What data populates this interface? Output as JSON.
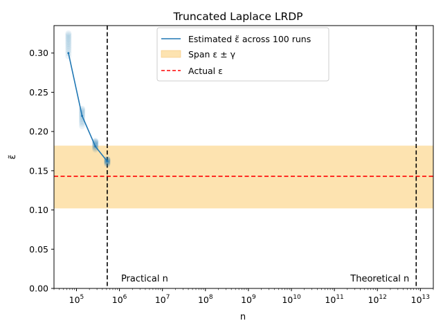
{
  "chart_data": {
    "type": "line",
    "title": "Truncated Laplace LRDP",
    "xlabel": "n",
    "ylabel": "ε̃",
    "xscale": "log",
    "xlim": [
      30000,
      20000000000000
    ],
    "ylim": [
      0.0,
      0.335
    ],
    "grid": false,
    "legend_position": "top-center",
    "x_ticks": [
      {
        "exp": 5,
        "base": "10",
        "sup": "5"
      },
      {
        "exp": 6,
        "base": "10",
        "sup": "6"
      },
      {
        "exp": 7,
        "base": "10",
        "sup": "7"
      },
      {
        "exp": 8,
        "base": "10",
        "sup": "8"
      },
      {
        "exp": 9,
        "base": "10",
        "sup": "9"
      },
      {
        "exp": 10,
        "base": "10",
        "sup": "10"
      },
      {
        "exp": 11,
        "base": "10",
        "sup": "11"
      },
      {
        "exp": 12,
        "base": "10",
        "sup": "12"
      },
      {
        "exp": 13,
        "base": "10",
        "sup": "13"
      }
    ],
    "y_ticks": [
      0.0,
      0.05,
      0.1,
      0.15,
      0.2,
      0.25,
      0.3
    ],
    "y_tick_labels": [
      "0.00",
      "0.05",
      "0.10",
      "0.15",
      "0.20",
      "0.25",
      "0.30"
    ],
    "series": [
      {
        "name": "Estimated ε̃ across 100 runs",
        "color": "#1f77b4",
        "x": [
          65000,
          135000,
          275000,
          520000
        ],
        "y": [
          0.3,
          0.22,
          0.181,
          0.162
        ],
        "run_scatter": [
          {
            "x": 65000,
            "min": 0.296,
            "max": 0.325
          },
          {
            "x": 135000,
            "min": 0.207,
            "max": 0.229
          },
          {
            "x": 275000,
            "min": 0.177,
            "max": 0.188
          },
          {
            "x": 520000,
            "min": 0.158,
            "max": 0.165
          }
        ]
      }
    ],
    "span": {
      "name": "Span ε ± γ",
      "lower": 0.102,
      "upper": 0.182,
      "color": "#fde3b0"
    },
    "actual": {
      "name": "Actual ε",
      "value": 0.143,
      "color": "#ff0000"
    },
    "vlines": [
      {
        "x": 520000,
        "label": "Practical n"
      },
      {
        "x": 8000000000000,
        "label": "Theoretical n"
      }
    ]
  }
}
